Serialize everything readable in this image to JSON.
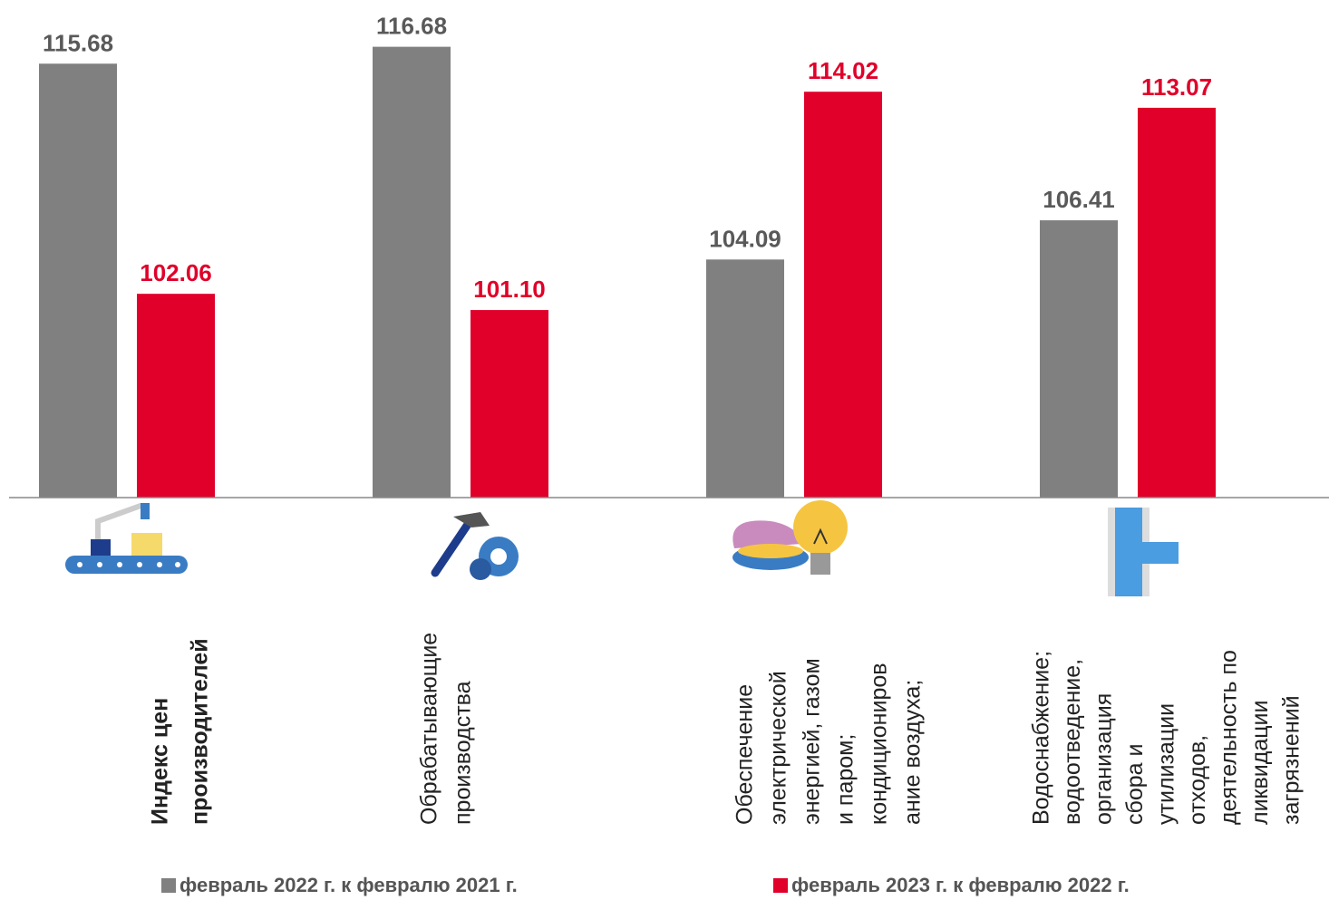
{
  "chart_data": {
    "type": "bar",
    "categories": [
      [
        "Индекс цен",
        "производителей"
      ],
      [
        "Обрабатывающие",
        "производства"
      ],
      [
        "Обеспечение",
        "электрической",
        "энергией, газом",
        "и паром;",
        "кондициониров",
        "ание воздуха;"
      ],
      [
        "Водоснабжение;",
        "водоотведение,",
        "организация",
        "сбора и",
        "утилизации",
        "отходов,",
        "деятельность по",
        "ликвидации",
        "загрязнений"
      ]
    ],
    "series": [
      {
        "name": "февраль 2022 г. к февралю 2021 г.",
        "color": "#808080",
        "label_color": "#595959",
        "values": [
          115.68,
          116.68,
          104.09,
          106.41
        ],
        "value_labels": [
          "115.68",
          "116.68",
          "104.09",
          "106.41"
        ]
      },
      {
        "name": "февраль 2023 г. к февралю 2022 г.",
        "color": "#e0002a",
        "label_color": "#e0002a",
        "values": [
          102.06,
          101.1,
          114.02,
          113.07
        ],
        "value_labels": [
          "102.06",
          "101.10",
          "114.02",
          "113.07"
        ]
      }
    ],
    "ylim": [
      90,
      118
    ]
  }
}
